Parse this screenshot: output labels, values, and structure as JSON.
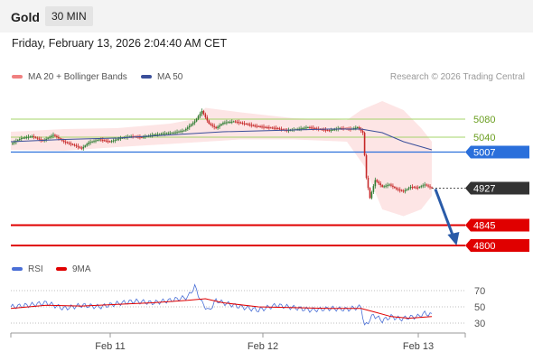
{
  "header": {
    "title": "Gold",
    "timeframe": "30 MIN"
  },
  "timestamp": "Friday, February 13, 2026 2:04:40 AM CET",
  "legend": {
    "bb_label": "MA 20 + Bollinger Bands",
    "ma50_label": "MA 50",
    "credit": "Research © 2026 Trading Central",
    "rsi_label": "RSI",
    "ma9_label": "9MA"
  },
  "colors": {
    "bb": "#f08080",
    "bb_fill": "#fde0e0",
    "ma50": "#3a4f9a",
    "resistance": "#a5d46a",
    "pivot": "#2a6fdb",
    "support": "#e00000",
    "price_tag": "#333333",
    "bull": "#2e7d32",
    "bear": "#c62828",
    "rsi": "#4a6fd6",
    "rsi_ma": "#e00000",
    "arrow": "#2a5ba8"
  },
  "chart_data": [
    {
      "type": "candlestick",
      "x_ticks": [
        "Feb 11",
        "Feb 12",
        "Feb 13"
      ],
      "levels": [
        {
          "value": 5080,
          "label": "5080",
          "kind": "resistance"
        },
        {
          "value": 5040,
          "label": "5040",
          "kind": "resistance"
        },
        {
          "value": 5007,
          "label": "5007",
          "kind": "pivot"
        },
        {
          "value": 4927,
          "label": "4927",
          "kind": "last"
        },
        {
          "value": 4845,
          "label": "4845",
          "kind": "support"
        },
        {
          "value": 4800,
          "label": "4800",
          "kind": "support"
        }
      ],
      "ylim": [
        4795,
        5145
      ],
      "price_path": [
        [
          0,
          5025
        ],
        [
          6,
          5038
        ],
        [
          12,
          5042
        ],
        [
          18,
          5032
        ],
        [
          24,
          5045
        ],
        [
          30,
          5030
        ],
        [
          36,
          5022
        ],
        [
          40,
          5015
        ],
        [
          44,
          5028
        ],
        [
          50,
          5035
        ],
        [
          56,
          5030
        ],
        [
          62,
          5038
        ],
        [
          68,
          5042
        ],
        [
          74,
          5040
        ],
        [
          80,
          5045
        ],
        [
          86,
          5048
        ],
        [
          92,
          5050
        ],
        [
          98,
          5055
        ],
        [
          104,
          5075
        ],
        [
          108,
          5098
        ],
        [
          112,
          5070
        ],
        [
          116,
          5060
        ],
        [
          120,
          5072
        ],
        [
          126,
          5075
        ],
        [
          132,
          5070
        ],
        [
          138,
          5065
        ],
        [
          144,
          5062
        ],
        [
          150,
          5060
        ],
        [
          156,
          5055
        ],
        [
          162,
          5058
        ],
        [
          168,
          5062
        ],
        [
          174,
          5058
        ],
        [
          180,
          5055
        ],
        [
          186,
          5060
        ],
        [
          192,
          5058
        ],
        [
          196,
          5062
        ],
        [
          199,
          5050
        ],
        [
          201,
          4950
        ],
        [
          203,
          4905
        ],
        [
          206,
          4945
        ],
        [
          210,
          4930
        ],
        [
          214,
          4935
        ],
        [
          218,
          4925
        ],
        [
          222,
          4920
        ],
        [
          226,
          4930
        ],
        [
          230,
          4928
        ],
        [
          234,
          4935
        ],
        [
          238,
          4927
        ]
      ],
      "ma50_path": [
        [
          0,
          5030
        ],
        [
          30,
          5035
        ],
        [
          60,
          5038
        ],
        [
          90,
          5045
        ],
        [
          120,
          5052
        ],
        [
          150,
          5055
        ],
        [
          180,
          5058
        ],
        [
          198,
          5058
        ],
        [
          210,
          5050
        ],
        [
          222,
          5030
        ],
        [
          238,
          5012
        ]
      ],
      "bb_upper": [
        [
          0,
          5052
        ],
        [
          30,
          5058
        ],
        [
          60,
          5060
        ],
        [
          90,
          5070
        ],
        [
          104,
          5080
        ],
        [
          110,
          5105
        ],
        [
          130,
          5095
        ],
        [
          160,
          5082
        ],
        [
          190,
          5078
        ],
        [
          198,
          5100
        ],
        [
          210,
          5120
        ],
        [
          222,
          5100
        ],
        [
          232,
          5060
        ],
        [
          238,
          5030
        ]
      ],
      "bb_lower": [
        [
          0,
          5012
        ],
        [
          30,
          5010
        ],
        [
          60,
          5018
        ],
        [
          90,
          5025
        ],
        [
          110,
          5030
        ],
        [
          130,
          5035
        ],
        [
          160,
          5035
        ],
        [
          190,
          5030
        ],
        [
          200,
          4975
        ],
        [
          210,
          4880
        ],
        [
          222,
          4865
        ],
        [
          232,
          4880
        ],
        [
          238,
          4910
        ]
      ],
      "forecast": [
        [
          240,
          4925
        ],
        [
          252,
          4800
        ]
      ]
    },
    {
      "type": "line",
      "series": [
        {
          "name": "RSI"
        },
        {
          "name": "9MA"
        }
      ],
      "yticks": [
        70,
        50,
        30
      ],
      "ylim": [
        20,
        80
      ],
      "rsi_path": [
        [
          0,
          50
        ],
        [
          10,
          52
        ],
        [
          20,
          55
        ],
        [
          30,
          48
        ],
        [
          40,
          52
        ],
        [
          50,
          50
        ],
        [
          60,
          54
        ],
        [
          70,
          57
        ],
        [
          80,
          55
        ],
        [
          90,
          58
        ],
        [
          100,
          62
        ],
        [
          104,
          75
        ],
        [
          108,
          55
        ],
        [
          112,
          45
        ],
        [
          116,
          58
        ],
        [
          120,
          55
        ],
        [
          130,
          50
        ],
        [
          140,
          46
        ],
        [
          150,
          52
        ],
        [
          160,
          49
        ],
        [
          170,
          46
        ],
        [
          180,
          48
        ],
        [
          190,
          47
        ],
        [
          198,
          50
        ],
        [
          200,
          26
        ],
        [
          205,
          40
        ],
        [
          210,
          33
        ],
        [
          215,
          38
        ],
        [
          220,
          35
        ],
        [
          225,
          37
        ],
        [
          230,
          38
        ],
        [
          234,
          42
        ],
        [
          238,
          40
        ]
      ],
      "ma_path": [
        [
          0,
          48
        ],
        [
          20,
          52
        ],
        [
          40,
          51
        ],
        [
          60,
          53
        ],
        [
          80,
          55
        ],
        [
          100,
          58
        ],
        [
          110,
          60
        ],
        [
          120,
          55
        ],
        [
          140,
          50
        ],
        [
          160,
          49
        ],
        [
          180,
          48
        ],
        [
          198,
          48
        ],
        [
          205,
          44
        ],
        [
          215,
          38
        ],
        [
          225,
          36
        ],
        [
          238,
          38
        ]
      ]
    }
  ]
}
